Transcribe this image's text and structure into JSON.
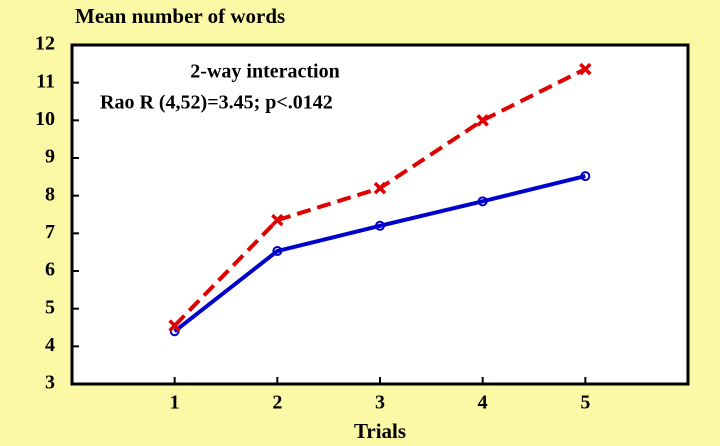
{
  "chart_data": {
    "type": "line",
    "title": "Mean number of words",
    "xlabel": "Trials",
    "annotations": [
      "2-way interaction",
      "Rao R (4,52)=3.45;  p<.0142"
    ],
    "x": [
      1,
      2,
      3,
      4,
      5
    ],
    "series": [
      {
        "color": "#0000cc",
        "dashed": false,
        "marker": "circle",
        "values": [
          4.4,
          6.53,
          7.2,
          7.85,
          8.52
        ]
      },
      {
        "color": "#e00000",
        "dashed": true,
        "marker": "x",
        "values": [
          4.55,
          7.35,
          8.2,
          10.0,
          11.36
        ]
      }
    ],
    "xlim": [
      0,
      6
    ],
    "xticks": [
      1,
      2,
      3,
      4,
      5
    ],
    "ylim": [
      3,
      12
    ],
    "yticks": [
      3,
      4,
      5,
      6,
      7,
      8,
      9,
      10,
      11,
      12
    ],
    "grid": false
  }
}
